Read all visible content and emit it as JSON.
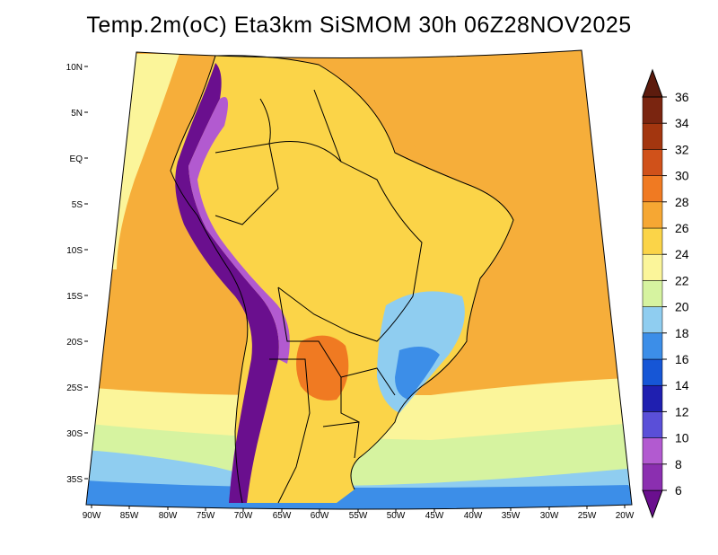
{
  "title": "Temp.2m(oC) Eta3km SiSMOM 30h 06Z28NOV2025",
  "lat_labels": [
    "10N",
    "5N",
    "EQ",
    "5S",
    "10S",
    "15S",
    "20S",
    "25S",
    "30S",
    "35S"
  ],
  "lon_labels": [
    "90W",
    "85W",
    "80W",
    "75W",
    "70W",
    "65W",
    "60W",
    "55W",
    "50W",
    "45W",
    "40W",
    "35W",
    "30W",
    "25W",
    "20W"
  ],
  "colorbar": {
    "labels": [
      "6",
      "8",
      "10",
      "12",
      "14",
      "16",
      "18",
      "20",
      "22",
      "24",
      "26",
      "28",
      "30",
      "32",
      "34",
      "36"
    ],
    "colors": [
      "#6a0f8e",
      "#8b2fb0",
      "#b25ad0",
      "#5a4fd8",
      "#1f1fb0",
      "#1656d6",
      "#3c8ee8",
      "#8fcdf0",
      "#d6f3a0",
      "#fbf59a",
      "#fbd448",
      "#f6a733",
      "#f07a22",
      "#d0511a",
      "#a3360f",
      "#7a2510",
      "#5c1b0d"
    ]
  },
  "palette": {
    "ocean_warm": "#f6ae3a",
    "ocean_mild": "#fbd448",
    "ocean_cool": "#fbf59a",
    "ocean_cold": "#d6f3a0",
    "ocean_colder": "#8fcdf0",
    "land_warm": "#fbd448",
    "andes": "#6a0f8e",
    "border": "#000000"
  }
}
